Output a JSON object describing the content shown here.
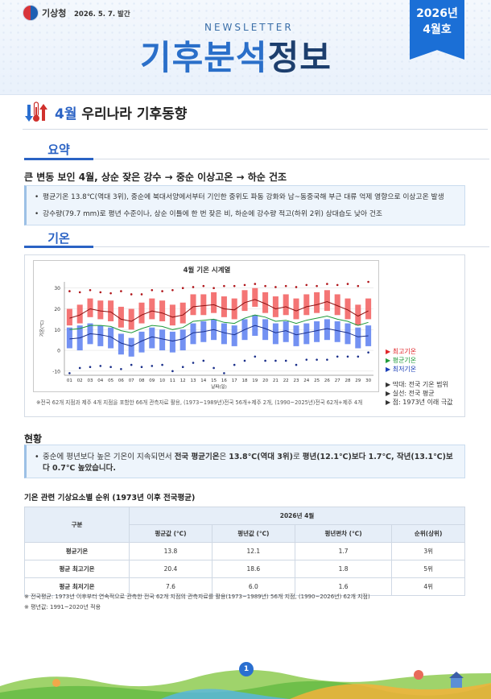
{
  "header": {
    "org_name": "기상청",
    "issue_date": "2026. 5. 7. 발간",
    "newsletter_label": "NEWSLETTER",
    "title_part1": "기후분석",
    "title_part2": "정보",
    "ribbon_year": "2026년",
    "ribbon_month": "4월호",
    "colors": {
      "accent": "#2a6fc9",
      "ribbon": "#1b6fd6",
      "dark": "#1d3f6e"
    }
  },
  "section": {
    "title_highlight": "4월",
    "title_rest": " 우리나라 기후동향",
    "icon": "thermometer-icon"
  },
  "summary": {
    "tab_label": "요약",
    "headline": "큰 변동 보인 4월, 상순 잦은 강수 → 중순 이상고온 → 하순 건조",
    "bullets": [
      "평균기온 13.8℃(역대 3위), 중순에 북대서양에서부터 기인한 중위도 파동 강화와 남~동중국해 부근 대류 억제 영향으로 이상고온 발생",
      "강수량(79.7 mm)로 평년 수준이나, 상순 이틀에 한 번 잦은 비, 하순에 강수량 적고(하위 2위) 상대습도 낮아 건조"
    ]
  },
  "temperature": {
    "tab_label": "기온",
    "chart_footnote": "※전국 62개 지점과 제주 4개 지점을 포함한 66개 관측자료 활용, (1973~1989년)전국 56개+제주 2개, (1990~2025년)전국 62개+제주 4개",
    "legend_lines": [
      {
        "label": "최고기온",
        "color": "#e0262a"
      },
      {
        "label": "평균기온",
        "color": "#1f9a3a"
      },
      {
        "label": "최저기온",
        "color": "#1b3fb8"
      }
    ],
    "legend_notes": [
      "막대: 전국 기온 범위",
      "실선: 전국 평균",
      "점: 1973년 이래 극값"
    ]
  },
  "chart_data": {
    "type": "bar",
    "title": "4월 기온 시계열",
    "xlabel": "날짜(일)",
    "ylabel": "기온(℃)",
    "ylim": [
      -12,
      33
    ],
    "yticks": [
      -10,
      0,
      10,
      20,
      30
    ],
    "categories": [
      "01",
      "02",
      "03",
      "04",
      "05",
      "06",
      "07",
      "08",
      "09",
      "10",
      "11",
      "12",
      "13",
      "14",
      "15",
      "16",
      "17",
      "18",
      "19",
      "20",
      "21",
      "22",
      "23",
      "24",
      "25",
      "26",
      "27",
      "28",
      "29",
      "30"
    ],
    "series": [
      {
        "name": "최고기온",
        "color": "#f25d5d",
        "range_high": [
          20,
          22,
          25,
          24,
          24,
          21,
          20,
          23,
          25,
          24,
          22,
          23,
          27,
          27,
          28,
          26,
          25,
          29,
          30,
          28,
          26,
          27,
          25,
          27,
          28,
          29,
          27,
          25,
          22,
          25
        ],
        "range_low": [
          12,
          13,
          16,
          15,
          14,
          11,
          10,
          13,
          15,
          14,
          12,
          13,
          17,
          17,
          18,
          16,
          15,
          19,
          21,
          18,
          16,
          17,
          15,
          17,
          18,
          19,
          17,
          15,
          12,
          15
        ],
        "mean": [
          15.5,
          17,
          20,
          19,
          18.5,
          15,
          14,
          17,
          19,
          18,
          16,
          17,
          21,
          21.5,
          22,
          20,
          19.5,
          23,
          24.5,
          22.5,
          20,
          21,
          19,
          21,
          22,
          23.5,
          21.5,
          19.5,
          16.5,
          19
        ],
        "extreme": [
          28.5,
          28,
          29,
          28,
          27.5,
          28.5,
          27,
          27,
          29,
          28.5,
          29,
          30,
          30.5,
          31,
          30,
          31,
          31,
          31.5,
          32,
          31,
          30.5,
          31,
          30.5,
          31.5,
          31,
          32,
          31.5,
          32,
          31,
          33
        ]
      },
      {
        "name": "평균기온",
        "color": "#1f9a3a",
        "mean": [
          10,
          10.5,
          12,
          12,
          11.5,
          9.5,
          8.5,
          10.5,
          12,
          11.5,
          10,
          11,
          14,
          14.5,
          15,
          13.5,
          13,
          15.5,
          17,
          16,
          14,
          14.5,
          13,
          14.5,
          15.5,
          16.5,
          15,
          14,
          12,
          13.5
        ]
      },
      {
        "name": "최저기온",
        "color": "#5a7ef0",
        "range_high": [
          11,
          12,
          13,
          12,
          11,
          8,
          6,
          9,
          11,
          10,
          9,
          10,
          13,
          14,
          15,
          13,
          12,
          15,
          17,
          15,
          13,
          14,
          12,
          13,
          14,
          15,
          14,
          13,
          11,
          12
        ],
        "range_low": [
          1,
          0,
          3,
          2,
          1,
          -2,
          -3,
          -1,
          1,
          0,
          -1,
          0,
          3,
          4,
          5,
          3,
          2,
          5,
          7,
          5,
          3,
          4,
          2,
          3,
          4,
          5,
          4,
          3,
          1,
          2
        ],
        "mean": [
          5.5,
          6,
          8,
          7.5,
          6.5,
          3.5,
          2,
          4.5,
          6.5,
          5.5,
          4.5,
          5.5,
          8.5,
          9,
          10,
          8.5,
          7.5,
          10,
          12,
          10.5,
          8.5,
          9.5,
          7.5,
          8.5,
          9.5,
          10.5,
          9.5,
          8.5,
          6.5,
          7
        ],
        "extreme": [
          -11,
          -8.5,
          -8,
          -7.5,
          -8,
          -9,
          -7,
          -8,
          -7.5,
          -7,
          -10,
          -8,
          -6,
          -5,
          -8.5,
          -11,
          -7,
          -5,
          -3,
          -5,
          -5,
          -5,
          -7,
          -4.5,
          -4.5,
          -4.5,
          -3,
          -3,
          -3,
          -1
        ]
      }
    ]
  },
  "current": {
    "heading": "현황",
    "text_prefix": "중순에 평년보다 높은 기온이 지속되면서 ",
    "text_bold1": "전국 평균기온",
    "text_mid1": "은 ",
    "text_bold2": "13.8℃(역대 3위)",
    "text_mid2": "로 ",
    "text_bold3": "평년(12.1℃)보다 1.7℃, 작년(13.1℃)보다 0.7℃ 높았습니다."
  },
  "ranking_table": {
    "title": "기온 관련 기상요소별 순위 (1973년 이후 전국평균)",
    "col_group": "구분",
    "period_header": "2026년 4월",
    "columns": [
      "평균값 (℃)",
      "평년값 (℃)",
      "평년편차 (℃)",
      "순위(상위)"
    ],
    "rows": [
      {
        "label": "평균기온",
        "cells": [
          "13.8",
          "12.1",
          "1.7",
          "3위"
        ]
      },
      {
        "label": "평균 최고기온",
        "cells": [
          "20.4",
          "18.6",
          "1.8",
          "5위"
        ]
      },
      {
        "label": "평균 최저기온",
        "cells": [
          "7.6",
          "6.0",
          "1.6",
          "4위"
        ]
      }
    ]
  },
  "notes": [
    "※ 전국평균: 1973년 이후부터 연속적으로 관측한 전국 62개 지점의 관측자료를 활용(1973~1989년) 56개 지점, (1990~2026년) 62개 지점)",
    "※ 평년값: 1991~2020년 적용"
  ],
  "footer": {
    "page_number": "1"
  }
}
